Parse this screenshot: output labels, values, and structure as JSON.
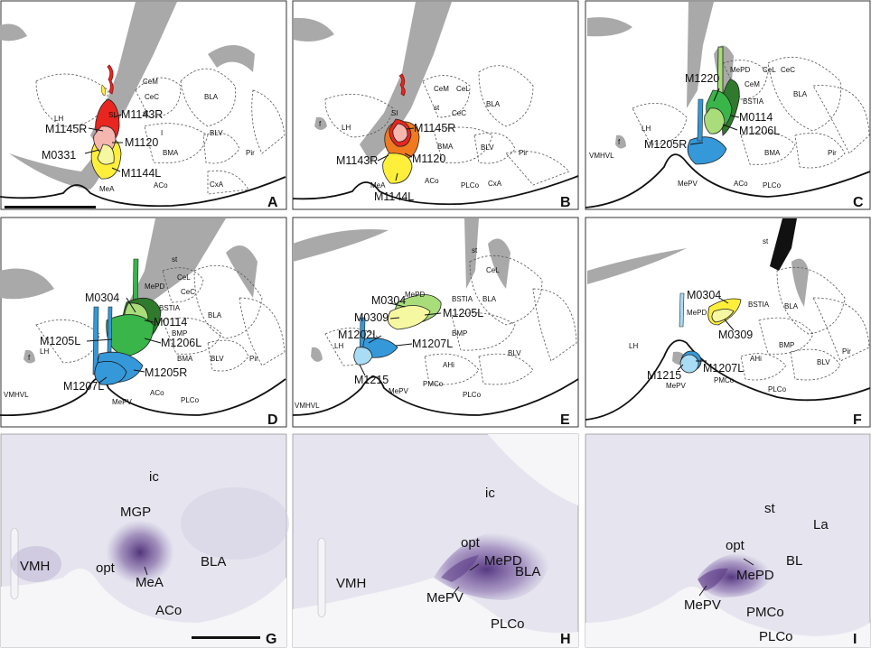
{
  "panels": [
    {
      "letter": "A",
      "regions": [
        "CeM",
        "CeC",
        "BLA",
        "st",
        "LH",
        "SI",
        "I",
        "BLV",
        "BMA",
        "Pir",
        "MeA",
        "ACo",
        "CxA"
      ],
      "cases": [
        "M1143R",
        "M1145R",
        "M1120",
        "M0331",
        "M1144L"
      ],
      "scale_bar": true
    },
    {
      "letter": "B",
      "regions": [
        "CeM",
        "CeL",
        "CeC",
        "st",
        "BLA",
        "SI",
        "f",
        "LH",
        "BMA",
        "BLV",
        "Pir",
        "MeA",
        "ACo",
        "PLCo",
        "CxA"
      ],
      "cases": [
        "M1145R",
        "M1143R",
        "M1120",
        "M1144L"
      ]
    },
    {
      "letter": "C",
      "regions": [
        "MePD",
        "CeL",
        "CeC",
        "CeM",
        "BSTIA",
        "BLA",
        "LH",
        "f",
        "VMHVL",
        "BMA",
        "Pir",
        "MePV",
        "ACo",
        "PLCo"
      ],
      "cases": [
        "M1220",
        "M0114",
        "M1206L",
        "M1205R"
      ]
    },
    {
      "letter": "D",
      "regions": [
        "st",
        "CeL",
        "CeC",
        "MePD",
        "BSTIA",
        "BLA",
        "BMP",
        "BMA",
        "BLV",
        "Pir",
        "LH",
        "f",
        "VMHVL",
        "ACo",
        "PLCo",
        "MePV"
      ],
      "cases": [
        "M0304",
        "M0114",
        "M1205L",
        "M1206L",
        "M1205R",
        "M1207L"
      ]
    },
    {
      "letter": "E",
      "regions": [
        "st",
        "CeL",
        "MePD",
        "BSTIA",
        "BLA",
        "BMP",
        "LH",
        "BLV",
        "AHi",
        "PMCo",
        "PLCo",
        "MePV",
        "VMHVL"
      ],
      "cases": [
        "M0304",
        "M0309",
        "M1205L",
        "M1202L",
        "M1207L",
        "M1215"
      ]
    },
    {
      "letter": "F",
      "regions": [
        "st",
        "MePD",
        "BSTIA",
        "BLA",
        "BMP",
        "LH",
        "AHi",
        "BLV",
        "Pir",
        "PMCo",
        "PLCo",
        "MePV"
      ],
      "cases": [
        "M0304",
        "M0309",
        "M1215",
        "M1207L"
      ]
    },
    {
      "letter": "G",
      "labels": [
        "ic",
        "MGP",
        "VMH",
        "opt",
        "MeA",
        "BLA",
        "ACo"
      ],
      "scale_bar": true
    },
    {
      "letter": "H",
      "labels": [
        "ic",
        "opt",
        "MePD",
        "BLA",
        "VMH",
        "MePV",
        "PLCo"
      ]
    },
    {
      "letter": "I",
      "labels": [
        "st",
        "La",
        "opt",
        "BL",
        "MePD",
        "MePV",
        "PMCo",
        "PLCo"
      ]
    }
  ],
  "colors": {
    "red": "#e8261f",
    "pink": "#f6b6b0",
    "orange": "#f07a1e",
    "yellow": "#ffef3a",
    "light_yellow": "#f5f8a0",
    "green": "#39b54a",
    "light_green": "#a8dd7a",
    "dark_green": "#2f7a2c",
    "blue": "#3598d8",
    "light_blue": "#a9dcf5",
    "stain": "#6a4a93",
    "tissue": "#ecebf3"
  }
}
